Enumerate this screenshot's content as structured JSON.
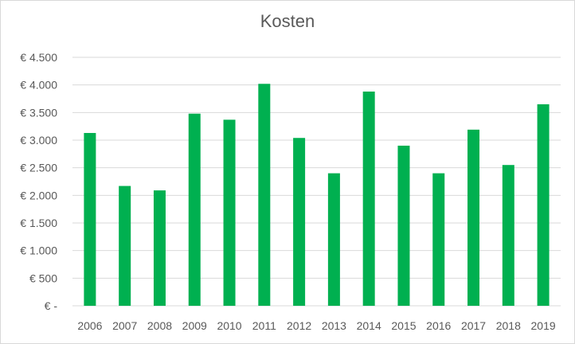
{
  "chart_data": {
    "type": "bar",
    "title": "Kosten",
    "xlabel": "",
    "ylabel": "",
    "categories": [
      "2006",
      "2007",
      "2008",
      "2009",
      "2010",
      "2011",
      "2012",
      "2013",
      "2014",
      "2015",
      "2016",
      "2017",
      "2018",
      "2019"
    ],
    "values": [
      3130,
      2170,
      2090,
      3480,
      3370,
      4020,
      3040,
      2400,
      3880,
      2900,
      2400,
      3190,
      2550,
      3650
    ],
    "ylim": [
      0,
      4500
    ],
    "y_ticks": [
      {
        "value": 0,
        "label": "€ -"
      },
      {
        "value": 500,
        "label": "€ 500"
      },
      {
        "value": 1000,
        "label": "€ 1.000"
      },
      {
        "value": 1500,
        "label": "€ 1.500"
      },
      {
        "value": 2000,
        "label": "€ 2.000"
      },
      {
        "value": 2500,
        "label": "€ 2.500"
      },
      {
        "value": 3000,
        "label": "€ 3.000"
      },
      {
        "value": 3500,
        "label": "€ 3.500"
      },
      {
        "value": 4000,
        "label": "€ 4.000"
      },
      {
        "value": 4500,
        "label": "€ 4.500"
      }
    ],
    "grid": true,
    "legend": "none",
    "colors": {
      "bar": "#00b050",
      "grid": "#d9d9d9",
      "text": "#595959"
    }
  }
}
